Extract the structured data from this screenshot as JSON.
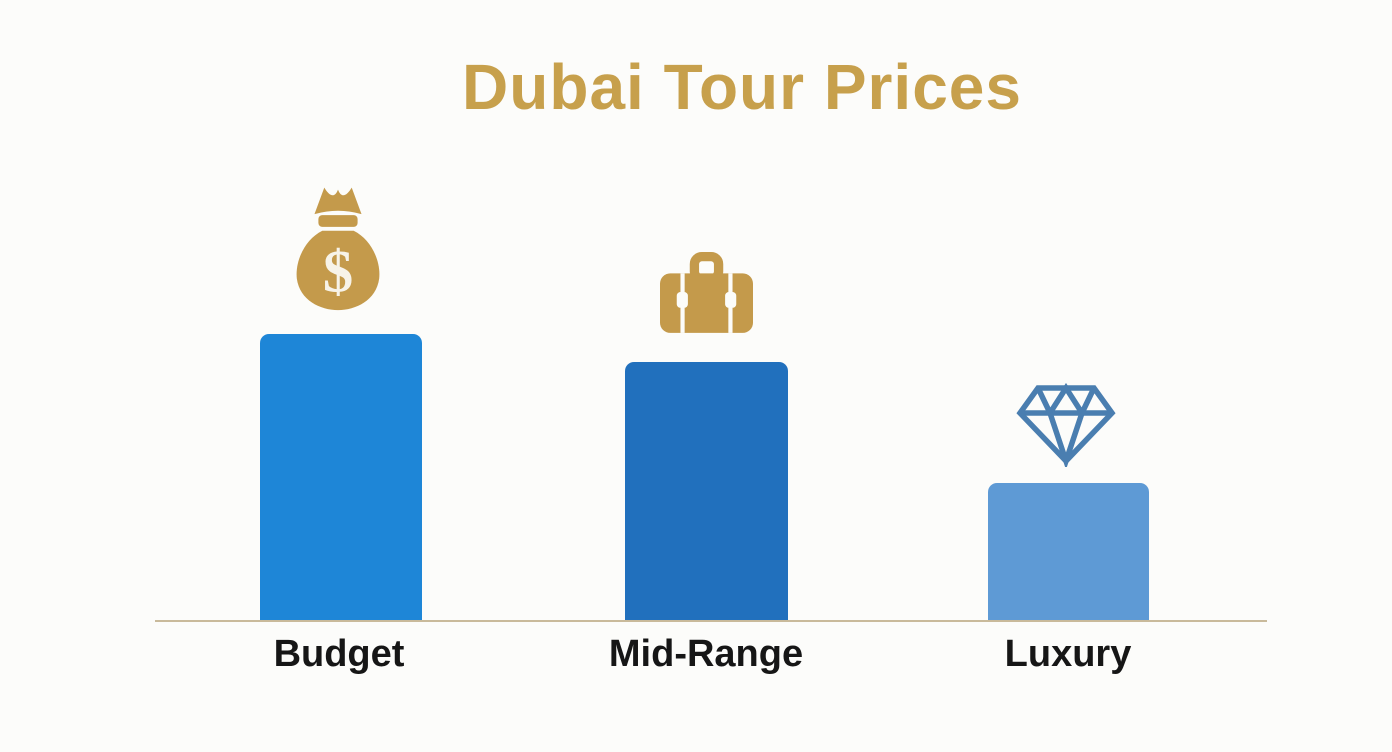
{
  "title": {
    "text": "Dubai Tour Prices"
  },
  "chart_data": {
    "type": "bar",
    "title": "Dubai Tour Prices",
    "categories": [
      "Budget",
      "Mid-Range",
      "Luxury"
    ],
    "values": [
      287,
      259,
      138
    ],
    "values_note": "no numeric axis shown; values are relative bar heights in screen pixels (bottom baseline = 0)",
    "bar_colors": [
      "#1e86d7",
      "#2170bd",
      "#5e9ad5"
    ],
    "icons": [
      "money-bag-icon",
      "briefcase-icon",
      "diamond-icon"
    ],
    "xlabel": "",
    "ylabel": "",
    "grid": false,
    "legend": false,
    "baseline_color": "#c9ba9b"
  },
  "icons": {
    "dollar_glyph": "$"
  },
  "colors": {
    "title": "#c7a04c",
    "gold": "#c49a4b",
    "gold-accent": "#f7f3e8",
    "diamond-blue": "#4a7eb0",
    "axis": "#c9ba9b",
    "label": "#161616",
    "background": "#fcfcfa"
  }
}
